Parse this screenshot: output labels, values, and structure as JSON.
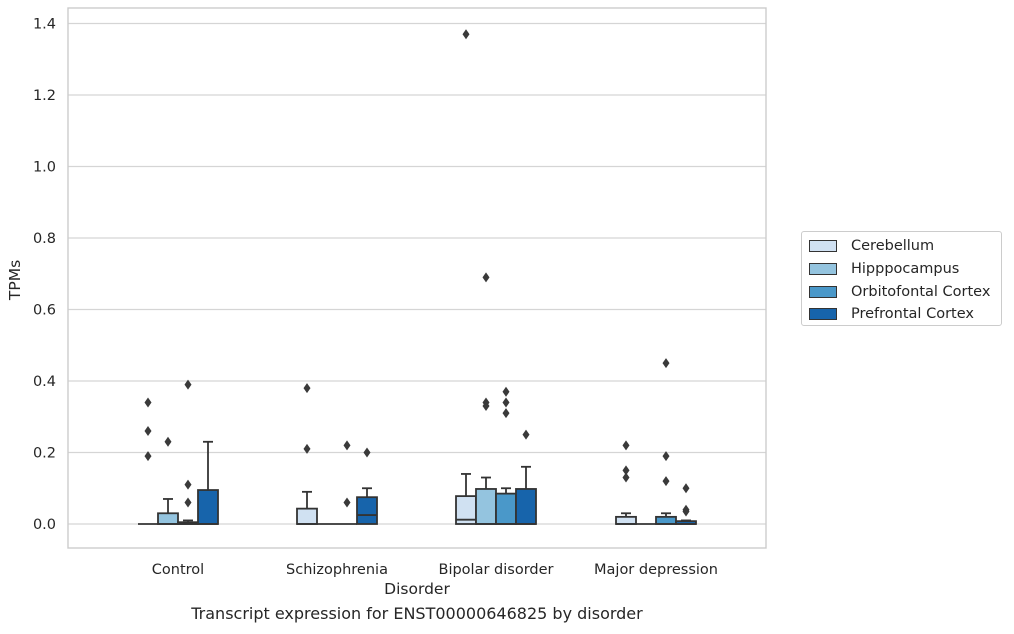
{
  "caption": "Transcript expression for ENST00000646825 by disorder",
  "colors": {
    "Cerebellum": "#d0e1f2",
    "Hipppocampus": "#94c4df",
    "Orbitofontal Cortex": "#4a98c9",
    "Prefrontal Cortex": "#1764ab",
    "grid": "#d5d5d5",
    "line": "#333333"
  },
  "chart_data": {
    "type": "box",
    "title": "",
    "xlabel": "Disorder",
    "ylabel": "TPMs",
    "ylim": [
      -0.07,
      1.44
    ],
    "yticks": [
      0.0,
      0.2,
      0.4,
      0.6,
      0.8,
      1.0,
      1.2,
      1.4
    ],
    "ytick_labels": [
      "0.0",
      "0.2",
      "0.4",
      "0.6",
      "0.8",
      "1.0",
      "1.2",
      "1.4"
    ],
    "grid": true,
    "legend_position": "right",
    "categories": [
      "Control",
      "Schizophrenia",
      "Bipolar disorder",
      "Major depression"
    ],
    "series": [
      {
        "name": "Cerebellum",
        "boxes": [
          {
            "whislo": 0.0,
            "q1": 0.0,
            "med": 0.0,
            "q3": 0.0,
            "whishi": 0.0,
            "fliers": [
              0.34,
              0.26,
              0.19
            ]
          },
          {
            "whislo": 0.0,
            "q1": 0.0,
            "med": 0.0,
            "q3": 0.043,
            "whishi": 0.09,
            "fliers": [
              0.38,
              0.21
            ]
          },
          {
            "whislo": 0.0,
            "q1": 0.0,
            "med": 0.012,
            "q3": 0.078,
            "whishi": 0.14,
            "fliers": [
              1.37
            ]
          },
          {
            "whislo": 0.0,
            "q1": 0.0,
            "med": 0.0,
            "q3": 0.02,
            "whishi": 0.03,
            "fliers": [
              0.22,
              0.15,
              0.13
            ]
          }
        ]
      },
      {
        "name": "Hipppocampus",
        "boxes": [
          {
            "whislo": 0.0,
            "q1": 0.0,
            "med": 0.0,
            "q3": 0.03,
            "whishi": 0.07,
            "fliers": [
              0.23
            ]
          },
          {
            "whislo": 0.0,
            "q1": 0.0,
            "med": 0.0,
            "q3": 0.0,
            "whishi": 0.0,
            "fliers": []
          },
          {
            "whislo": 0.0,
            "q1": 0.0,
            "med": 0.0,
            "q3": 0.098,
            "whishi": 0.13,
            "fliers": [
              0.69,
              0.34,
              0.33
            ]
          },
          {
            "whislo": 0.0,
            "q1": 0.0,
            "med": 0.0,
            "q3": 0.0,
            "whishi": 0.0,
            "fliers": []
          }
        ]
      },
      {
        "name": "Orbitofontal Cortex",
        "boxes": [
          {
            "whislo": 0.0,
            "q1": 0.0,
            "med": 0.0,
            "q3": 0.005,
            "whishi": 0.01,
            "fliers": [
              0.39,
              0.11,
              0.06
            ]
          },
          {
            "whislo": 0.0,
            "q1": 0.0,
            "med": 0.0,
            "q3": 0.0,
            "whishi": 0.0,
            "fliers": [
              0.22,
              0.06
            ]
          },
          {
            "whislo": 0.0,
            "q1": 0.0,
            "med": 0.0,
            "q3": 0.085,
            "whishi": 0.1,
            "fliers": [
              0.37,
              0.34,
              0.31
            ]
          },
          {
            "whislo": 0.0,
            "q1": 0.0,
            "med": 0.0,
            "q3": 0.02,
            "whishi": 0.03,
            "fliers": [
              0.45,
              0.19,
              0.12
            ]
          }
        ]
      },
      {
        "name": "Prefrontal Cortex",
        "boxes": [
          {
            "whislo": 0.0,
            "q1": 0.0,
            "med": 0.0,
            "q3": 0.095,
            "whishi": 0.23,
            "fliers": []
          },
          {
            "whislo": 0.0,
            "q1": 0.0,
            "med": 0.025,
            "q3": 0.075,
            "whishi": 0.1,
            "fliers": [
              0.2
            ]
          },
          {
            "whislo": 0.0,
            "q1": 0.0,
            "med": 0.0,
            "q3": 0.098,
            "whishi": 0.16,
            "fliers": [
              0.25
            ]
          },
          {
            "whislo": 0.0,
            "q1": 0.0,
            "med": 0.0,
            "q3": 0.008,
            "whishi": 0.01,
            "fliers": [
              0.1,
              0.04,
              0.035
            ]
          }
        ]
      }
    ]
  }
}
